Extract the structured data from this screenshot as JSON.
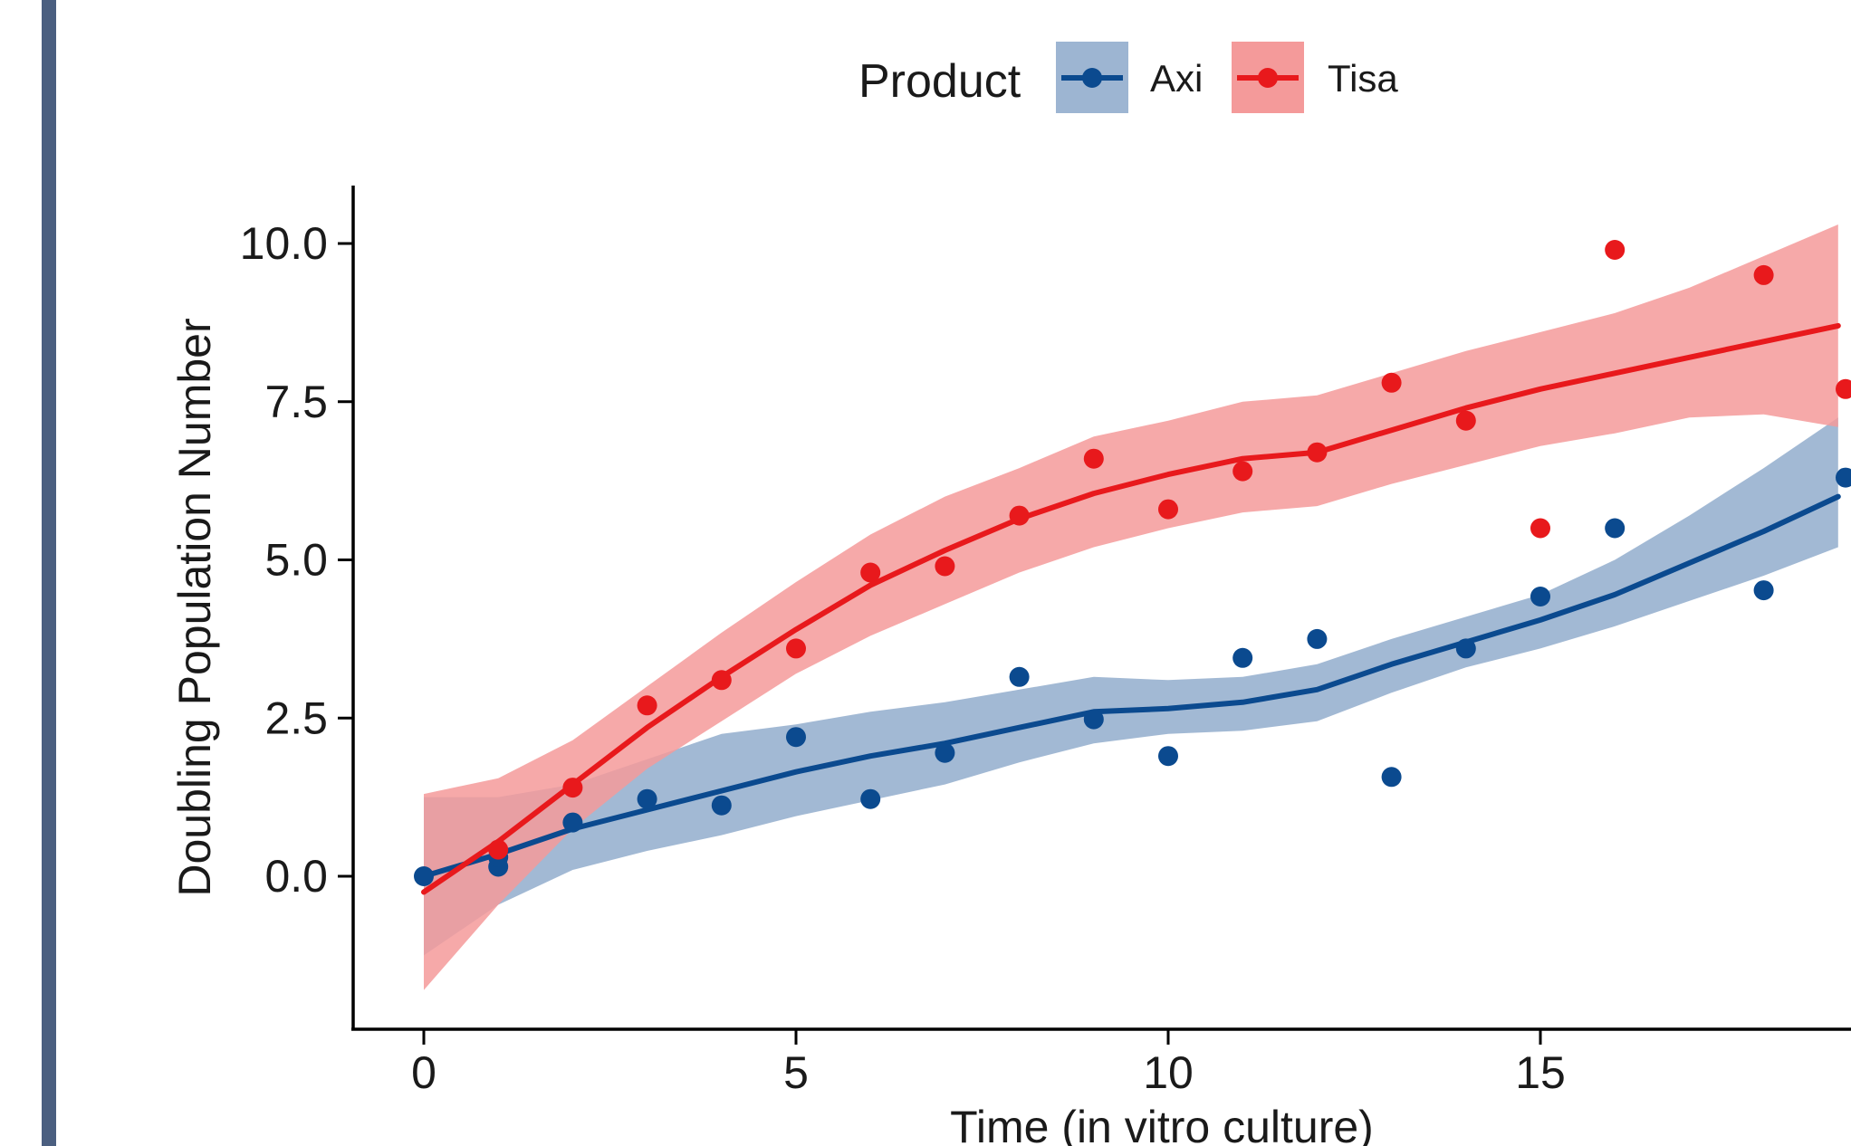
{
  "chart_data": {
    "type": "scatter",
    "title": "",
    "xlabel": "Time (in vitro culture)",
    "ylabel": "Doubling Population Number",
    "xlim": [
      -0.9,
      19.9
    ],
    "ylim": [
      -2.4,
      10.9
    ],
    "x_ticks": [
      0,
      5,
      10,
      15
    ],
    "x_tick_labels": [
      "0",
      "5",
      "10",
      "15"
    ],
    "y_ticks": [
      0,
      2.5,
      5,
      7.5,
      10
    ],
    "y_tick_labels": [
      "0.0",
      "2.5",
      "5.0",
      "7.5",
      "10.0"
    ],
    "grid": false,
    "legend": {
      "title": "Product",
      "position": "top"
    },
    "smoothing": "loess fit with confidence band",
    "series": [
      {
        "name": "Axi",
        "color": "#0b4a8f",
        "band_color": "#9db5d2",
        "points": [
          [
            0,
            0.0
          ],
          [
            1,
            0.15
          ],
          [
            1,
            0.3
          ],
          [
            2,
            0.85
          ],
          [
            3,
            1.22
          ],
          [
            4,
            1.12
          ],
          [
            5,
            2.2
          ],
          [
            6,
            1.22
          ],
          [
            7,
            1.95
          ],
          [
            8,
            3.15
          ],
          [
            9,
            2.48
          ],
          [
            10,
            1.9
          ],
          [
            11,
            3.45
          ],
          [
            12,
            3.75
          ],
          [
            13,
            1.57
          ],
          [
            14,
            3.6
          ],
          [
            15,
            4.42
          ],
          [
            16,
            5.5
          ],
          [
            18,
            4.52
          ],
          [
            19.1,
            6.3
          ]
        ],
        "fit": [
          [
            0,
            0.0
          ],
          [
            1,
            0.35
          ],
          [
            2,
            0.75
          ],
          [
            3,
            1.05
          ],
          [
            4,
            1.35
          ],
          [
            5,
            1.65
          ],
          [
            6,
            1.9
          ],
          [
            7,
            2.1
          ],
          [
            8,
            2.35
          ],
          [
            9,
            2.6
          ],
          [
            10,
            2.65
          ],
          [
            11,
            2.75
          ],
          [
            12,
            2.95
          ],
          [
            13,
            3.35
          ],
          [
            14,
            3.7
          ],
          [
            15,
            4.05
          ],
          [
            16,
            4.45
          ],
          [
            17,
            4.95
          ],
          [
            18,
            5.45
          ],
          [
            19,
            6.0
          ]
        ],
        "band_upper": [
          [
            0,
            1.25
          ],
          [
            1,
            1.25
          ],
          [
            2,
            1.45
          ],
          [
            3,
            1.85
          ],
          [
            4,
            2.25
          ],
          [
            5,
            2.4
          ],
          [
            6,
            2.6
          ],
          [
            7,
            2.75
          ],
          [
            8,
            2.95
          ],
          [
            9,
            3.15
          ],
          [
            10,
            3.1
          ],
          [
            11,
            3.15
          ],
          [
            12,
            3.35
          ],
          [
            13,
            3.75
          ],
          [
            14,
            4.1
          ],
          [
            15,
            4.45
          ],
          [
            16,
            5.0
          ],
          [
            17,
            5.7
          ],
          [
            18,
            6.45
          ],
          [
            19,
            7.25
          ]
        ],
        "band_lower": [
          [
            0,
            -1.25
          ],
          [
            1,
            -0.45
          ],
          [
            2,
            0.1
          ],
          [
            3,
            0.4
          ],
          [
            4,
            0.65
          ],
          [
            5,
            0.95
          ],
          [
            6,
            1.2
          ],
          [
            7,
            1.45
          ],
          [
            8,
            1.8
          ],
          [
            9,
            2.1
          ],
          [
            10,
            2.25
          ],
          [
            11,
            2.3
          ],
          [
            12,
            2.45
          ],
          [
            13,
            2.9
          ],
          [
            14,
            3.3
          ],
          [
            15,
            3.6
          ],
          [
            16,
            3.95
          ],
          [
            17,
            4.35
          ],
          [
            18,
            4.75
          ],
          [
            19,
            5.2
          ]
        ]
      },
      {
        "name": "Tisa",
        "color": "#e8191c",
        "band_color": "#f49a9a",
        "points": [
          [
            1,
            0.42
          ],
          [
            2,
            1.4
          ],
          [
            3,
            2.7
          ],
          [
            4,
            3.1
          ],
          [
            5,
            3.6
          ],
          [
            6,
            4.8
          ],
          [
            7,
            4.9
          ],
          [
            8,
            5.7
          ],
          [
            9,
            6.6
          ],
          [
            10,
            5.8
          ],
          [
            11,
            6.4
          ],
          [
            12,
            6.7
          ],
          [
            13,
            7.8
          ],
          [
            14,
            7.2
          ],
          [
            15,
            5.5
          ],
          [
            16,
            9.9
          ],
          [
            18,
            9.5
          ],
          [
            19.1,
            7.7
          ]
        ],
        "fit": [
          [
            0,
            -0.25
          ],
          [
            1,
            0.55
          ],
          [
            2,
            1.45
          ],
          [
            3,
            2.35
          ],
          [
            4,
            3.15
          ],
          [
            5,
            3.9
          ],
          [
            6,
            4.6
          ],
          [
            7,
            5.15
          ],
          [
            8,
            5.65
          ],
          [
            9,
            6.05
          ],
          [
            10,
            6.35
          ],
          [
            11,
            6.6
          ],
          [
            12,
            6.7
          ],
          [
            13,
            7.05
          ],
          [
            14,
            7.4
          ],
          [
            15,
            7.7
          ],
          [
            16,
            7.95
          ],
          [
            17,
            8.2
          ],
          [
            18,
            8.45
          ],
          [
            19,
            8.7
          ]
        ],
        "band_upper": [
          [
            0,
            1.3
          ],
          [
            1,
            1.55
          ],
          [
            2,
            2.15
          ],
          [
            3,
            3.0
          ],
          [
            4,
            3.85
          ],
          [
            5,
            4.65
          ],
          [
            6,
            5.4
          ],
          [
            7,
            6.0
          ],
          [
            8,
            6.45
          ],
          [
            9,
            6.95
          ],
          [
            10,
            7.2
          ],
          [
            11,
            7.5
          ],
          [
            12,
            7.6
          ],
          [
            13,
            7.95
          ],
          [
            14,
            8.3
          ],
          [
            15,
            8.6
          ],
          [
            16,
            8.9
          ],
          [
            17,
            9.3
          ],
          [
            18,
            9.8
          ],
          [
            19,
            10.3
          ]
        ],
        "band_lower": [
          [
            0,
            -1.8
          ],
          [
            1,
            -0.45
          ],
          [
            2,
            0.75
          ],
          [
            3,
            1.7
          ],
          [
            4,
            2.45
          ],
          [
            5,
            3.2
          ],
          [
            6,
            3.8
          ],
          [
            7,
            4.3
          ],
          [
            8,
            4.8
          ],
          [
            9,
            5.2
          ],
          [
            10,
            5.5
          ],
          [
            11,
            5.75
          ],
          [
            12,
            5.85
          ],
          [
            13,
            6.2
          ],
          [
            14,
            6.5
          ],
          [
            15,
            6.8
          ],
          [
            16,
            7.0
          ],
          [
            17,
            7.25
          ],
          [
            18,
            7.3
          ],
          [
            19,
            7.1
          ]
        ]
      }
    ]
  }
}
